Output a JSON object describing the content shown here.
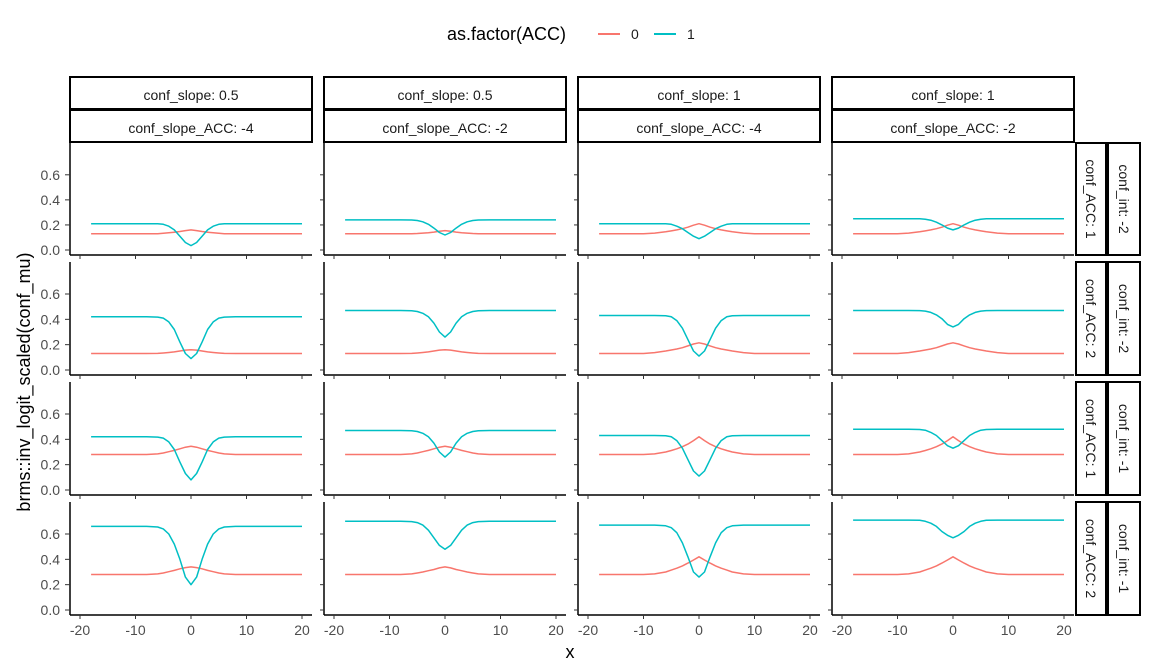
{
  "chart_data": {
    "type": "line",
    "xlabel": "x",
    "ylabel": "brms::inv_logit_scaled(conf_mu)",
    "xlim": [
      -20,
      20
    ],
    "ylim": [
      0,
      0.75
    ],
    "x_ticks": [
      "-20",
      "-10",
      "0",
      "10",
      "20"
    ],
    "y_ticks": [
      "0.0",
      "0.2",
      "0.4",
      "0.6"
    ],
    "legend": {
      "title": "as.factor(ACC)",
      "position": "top",
      "entries": [
        {
          "label": "0",
          "color": "#F8766D"
        },
        {
          "label": "1",
          "color": "#00BFC4"
        }
      ]
    },
    "columns": [
      {
        "strip1": "conf_slope: 0.5",
        "strip2": "conf_slope_ACC: -4"
      },
      {
        "strip1": "conf_slope: 0.5",
        "strip2": "conf_slope_ACC: -2"
      },
      {
        "strip1": "conf_slope: 1",
        "strip2": "conf_slope_ACC: -4"
      },
      {
        "strip1": "conf_slope: 1",
        "strip2": "conf_slope_ACC: -2"
      }
    ],
    "rows": [
      {
        "strip1": "conf_ACC: 1",
        "strip2": "conf_int: -2"
      },
      {
        "strip1": "conf_ACC: 2",
        "strip2": "conf_int: -2"
      },
      {
        "strip1": "conf_ACC: 1",
        "strip2": "conf_int: -1"
      },
      {
        "strip1": "conf_ACC: 2",
        "strip2": "conf_int: -1"
      }
    ],
    "series_x": [
      -18,
      -16,
      -14,
      -12,
      -10,
      -8,
      -6,
      -5,
      -4,
      -3,
      -2,
      -1,
      0,
      1,
      2,
      3,
      4,
      5,
      6,
      8,
      10,
      12,
      14,
      16,
      18,
      20
    ],
    "panels": [
      [
        {
          "acc0": [
            0.13,
            0.13,
            0.13,
            0.13,
            0.13,
            0.13,
            0.13,
            0.133,
            0.137,
            0.142,
            0.148,
            0.155,
            0.16,
            0.155,
            0.148,
            0.142,
            0.137,
            0.133,
            0.13,
            0.13,
            0.13,
            0.13,
            0.13,
            0.13,
            0.13,
            0.13
          ],
          "acc1": [
            0.21,
            0.21,
            0.21,
            0.21,
            0.21,
            0.21,
            0.209,
            0.205,
            0.19,
            0.16,
            0.11,
            0.06,
            0.035,
            0.06,
            0.11,
            0.16,
            0.19,
            0.205,
            0.209,
            0.21,
            0.21,
            0.21,
            0.21,
            0.21,
            0.21,
            0.21
          ]
        },
        {
          "acc0": [
            0.13,
            0.13,
            0.13,
            0.13,
            0.13,
            0.13,
            0.13,
            0.132,
            0.135,
            0.138,
            0.143,
            0.15,
            0.155,
            0.15,
            0.143,
            0.138,
            0.135,
            0.132,
            0.13,
            0.13,
            0.13,
            0.13,
            0.13,
            0.13,
            0.13,
            0.13
          ],
          "acc1": [
            0.24,
            0.24,
            0.24,
            0.24,
            0.24,
            0.24,
            0.239,
            0.235,
            0.225,
            0.205,
            0.175,
            0.14,
            0.12,
            0.14,
            0.175,
            0.205,
            0.225,
            0.235,
            0.239,
            0.24,
            0.24,
            0.24,
            0.24,
            0.24,
            0.24,
            0.24
          ]
        },
        {
          "acc0": [
            0.13,
            0.13,
            0.13,
            0.13,
            0.13,
            0.135,
            0.145,
            0.152,
            0.16,
            0.17,
            0.182,
            0.198,
            0.21,
            0.198,
            0.182,
            0.17,
            0.16,
            0.152,
            0.145,
            0.135,
            0.13,
            0.13,
            0.13,
            0.13,
            0.13,
            0.13
          ],
          "acc1": [
            0.21,
            0.21,
            0.21,
            0.21,
            0.21,
            0.21,
            0.209,
            0.205,
            0.19,
            0.17,
            0.14,
            0.11,
            0.09,
            0.11,
            0.14,
            0.17,
            0.19,
            0.205,
            0.209,
            0.21,
            0.21,
            0.21,
            0.21,
            0.21,
            0.21,
            0.21
          ]
        },
        {
          "acc0": [
            0.13,
            0.13,
            0.13,
            0.13,
            0.13,
            0.135,
            0.145,
            0.152,
            0.16,
            0.17,
            0.182,
            0.198,
            0.21,
            0.198,
            0.182,
            0.17,
            0.16,
            0.152,
            0.145,
            0.135,
            0.13,
            0.13,
            0.13,
            0.13,
            0.13,
            0.13
          ],
          "acc1": [
            0.25,
            0.25,
            0.25,
            0.25,
            0.25,
            0.25,
            0.249,
            0.246,
            0.238,
            0.222,
            0.2,
            0.175,
            0.16,
            0.175,
            0.2,
            0.222,
            0.238,
            0.246,
            0.249,
            0.25,
            0.25,
            0.25,
            0.25,
            0.25,
            0.25,
            0.25
          ]
        }
      ],
      [
        {
          "acc0": [
            0.13,
            0.13,
            0.13,
            0.13,
            0.13,
            0.13,
            0.131,
            0.134,
            0.138,
            0.143,
            0.15,
            0.157,
            0.16,
            0.157,
            0.15,
            0.143,
            0.138,
            0.134,
            0.131,
            0.13,
            0.13,
            0.13,
            0.13,
            0.13,
            0.13,
            0.13
          ],
          "acc1": [
            0.42,
            0.42,
            0.42,
            0.42,
            0.42,
            0.42,
            0.418,
            0.41,
            0.38,
            0.32,
            0.22,
            0.13,
            0.09,
            0.13,
            0.22,
            0.32,
            0.38,
            0.41,
            0.418,
            0.42,
            0.42,
            0.42,
            0.42,
            0.42,
            0.42,
            0.42
          ]
        },
        {
          "acc0": [
            0.13,
            0.13,
            0.13,
            0.13,
            0.13,
            0.13,
            0.131,
            0.134,
            0.138,
            0.143,
            0.15,
            0.157,
            0.16,
            0.157,
            0.15,
            0.143,
            0.138,
            0.134,
            0.131,
            0.13,
            0.13,
            0.13,
            0.13,
            0.13,
            0.13,
            0.13
          ],
          "acc1": [
            0.47,
            0.47,
            0.47,
            0.47,
            0.47,
            0.47,
            0.468,
            0.462,
            0.448,
            0.42,
            0.37,
            0.3,
            0.26,
            0.3,
            0.37,
            0.42,
            0.448,
            0.462,
            0.468,
            0.47,
            0.47,
            0.47,
            0.47,
            0.47,
            0.47,
            0.47
          ]
        },
        {
          "acc0": [
            0.13,
            0.13,
            0.13,
            0.13,
            0.13,
            0.137,
            0.15,
            0.158,
            0.166,
            0.176,
            0.19,
            0.205,
            0.215,
            0.205,
            0.19,
            0.176,
            0.166,
            0.158,
            0.15,
            0.137,
            0.13,
            0.13,
            0.13,
            0.13,
            0.13,
            0.13
          ],
          "acc1": [
            0.43,
            0.43,
            0.43,
            0.43,
            0.43,
            0.43,
            0.428,
            0.42,
            0.39,
            0.33,
            0.24,
            0.15,
            0.11,
            0.15,
            0.24,
            0.33,
            0.39,
            0.42,
            0.428,
            0.43,
            0.43,
            0.43,
            0.43,
            0.43,
            0.43,
            0.43
          ]
        },
        {
          "acc0": [
            0.13,
            0.13,
            0.13,
            0.13,
            0.13,
            0.137,
            0.15,
            0.158,
            0.166,
            0.176,
            0.19,
            0.205,
            0.215,
            0.205,
            0.19,
            0.176,
            0.166,
            0.158,
            0.15,
            0.137,
            0.13,
            0.13,
            0.13,
            0.13,
            0.13,
            0.13
          ],
          "acc1": [
            0.47,
            0.47,
            0.47,
            0.47,
            0.47,
            0.47,
            0.469,
            0.465,
            0.455,
            0.435,
            0.405,
            0.36,
            0.34,
            0.36,
            0.405,
            0.435,
            0.455,
            0.465,
            0.469,
            0.47,
            0.47,
            0.47,
            0.47,
            0.47,
            0.47,
            0.47
          ]
        }
      ],
      [
        {
          "acc0": [
            0.28,
            0.28,
            0.28,
            0.28,
            0.28,
            0.28,
            0.285,
            0.292,
            0.302,
            0.313,
            0.325,
            0.338,
            0.345,
            0.338,
            0.325,
            0.313,
            0.302,
            0.292,
            0.285,
            0.28,
            0.28,
            0.28,
            0.28,
            0.28,
            0.28,
            0.28
          ],
          "acc1": [
            0.42,
            0.42,
            0.42,
            0.42,
            0.42,
            0.42,
            0.418,
            0.41,
            0.38,
            0.32,
            0.22,
            0.13,
            0.08,
            0.13,
            0.22,
            0.32,
            0.38,
            0.41,
            0.418,
            0.42,
            0.42,
            0.42,
            0.42,
            0.42,
            0.42,
            0.42
          ]
        },
        {
          "acc0": [
            0.28,
            0.28,
            0.28,
            0.28,
            0.28,
            0.28,
            0.285,
            0.292,
            0.302,
            0.313,
            0.325,
            0.338,
            0.345,
            0.338,
            0.325,
            0.313,
            0.302,
            0.292,
            0.285,
            0.28,
            0.28,
            0.28,
            0.28,
            0.28,
            0.28,
            0.28
          ],
          "acc1": [
            0.47,
            0.47,
            0.47,
            0.47,
            0.47,
            0.47,
            0.468,
            0.462,
            0.448,
            0.42,
            0.37,
            0.3,
            0.26,
            0.3,
            0.37,
            0.42,
            0.448,
            0.462,
            0.468,
            0.47,
            0.47,
            0.47,
            0.47,
            0.47,
            0.47,
            0.47
          ]
        },
        {
          "acc0": [
            0.28,
            0.28,
            0.28,
            0.28,
            0.28,
            0.285,
            0.3,
            0.312,
            0.325,
            0.342,
            0.362,
            0.39,
            0.42,
            0.39,
            0.362,
            0.342,
            0.325,
            0.312,
            0.3,
            0.285,
            0.28,
            0.28,
            0.28,
            0.28,
            0.28,
            0.28
          ],
          "acc1": [
            0.43,
            0.43,
            0.43,
            0.43,
            0.43,
            0.43,
            0.428,
            0.42,
            0.39,
            0.33,
            0.24,
            0.15,
            0.11,
            0.15,
            0.24,
            0.33,
            0.39,
            0.42,
            0.428,
            0.43,
            0.43,
            0.43,
            0.43,
            0.43,
            0.43,
            0.43
          ]
        },
        {
          "acc0": [
            0.28,
            0.28,
            0.28,
            0.28,
            0.28,
            0.285,
            0.3,
            0.312,
            0.325,
            0.342,
            0.362,
            0.39,
            0.42,
            0.39,
            0.362,
            0.342,
            0.325,
            0.312,
            0.3,
            0.285,
            0.28,
            0.28,
            0.28,
            0.28,
            0.28,
            0.28
          ],
          "acc1": [
            0.48,
            0.48,
            0.48,
            0.48,
            0.48,
            0.48,
            0.478,
            0.472,
            0.455,
            0.43,
            0.39,
            0.35,
            0.33,
            0.35,
            0.39,
            0.43,
            0.455,
            0.472,
            0.478,
            0.48,
            0.48,
            0.48,
            0.48,
            0.48,
            0.48,
            0.48
          ]
        }
      ],
      [
        {
          "acc0": [
            0.28,
            0.28,
            0.28,
            0.28,
            0.28,
            0.28,
            0.285,
            0.292,
            0.302,
            0.313,
            0.325,
            0.335,
            0.34,
            0.335,
            0.325,
            0.313,
            0.302,
            0.292,
            0.285,
            0.28,
            0.28,
            0.28,
            0.28,
            0.28,
            0.28,
            0.28
          ],
          "acc1": [
            0.66,
            0.66,
            0.66,
            0.66,
            0.66,
            0.66,
            0.655,
            0.64,
            0.6,
            0.52,
            0.4,
            0.26,
            0.2,
            0.26,
            0.4,
            0.52,
            0.6,
            0.64,
            0.655,
            0.66,
            0.66,
            0.66,
            0.66,
            0.66,
            0.66,
            0.66
          ]
        },
        {
          "acc0": [
            0.28,
            0.28,
            0.28,
            0.28,
            0.28,
            0.28,
            0.285,
            0.292,
            0.3,
            0.31,
            0.32,
            0.332,
            0.34,
            0.332,
            0.32,
            0.31,
            0.3,
            0.292,
            0.285,
            0.28,
            0.28,
            0.28,
            0.28,
            0.28,
            0.28,
            0.28
          ],
          "acc1": [
            0.7,
            0.7,
            0.7,
            0.7,
            0.7,
            0.7,
            0.698,
            0.69,
            0.67,
            0.63,
            0.57,
            0.51,
            0.48,
            0.51,
            0.57,
            0.63,
            0.67,
            0.69,
            0.698,
            0.7,
            0.7,
            0.7,
            0.7,
            0.7,
            0.7,
            0.7
          ]
        },
        {
          "acc0": [
            0.28,
            0.28,
            0.28,
            0.28,
            0.28,
            0.285,
            0.3,
            0.315,
            0.33,
            0.348,
            0.37,
            0.395,
            0.42,
            0.395,
            0.37,
            0.348,
            0.33,
            0.315,
            0.3,
            0.285,
            0.28,
            0.28,
            0.28,
            0.28,
            0.28,
            0.28
          ],
          "acc1": [
            0.67,
            0.67,
            0.67,
            0.67,
            0.67,
            0.67,
            0.665,
            0.65,
            0.61,
            0.53,
            0.42,
            0.3,
            0.26,
            0.3,
            0.42,
            0.53,
            0.61,
            0.65,
            0.665,
            0.67,
            0.67,
            0.67,
            0.67,
            0.67,
            0.67,
            0.67
          ]
        },
        {
          "acc0": [
            0.28,
            0.28,
            0.28,
            0.28,
            0.28,
            0.285,
            0.3,
            0.315,
            0.33,
            0.348,
            0.37,
            0.395,
            0.42,
            0.395,
            0.37,
            0.348,
            0.33,
            0.315,
            0.3,
            0.285,
            0.28,
            0.28,
            0.28,
            0.28,
            0.28,
            0.28
          ],
          "acc1": [
            0.71,
            0.71,
            0.71,
            0.71,
            0.71,
            0.71,
            0.708,
            0.7,
            0.685,
            0.66,
            0.62,
            0.59,
            0.57,
            0.59,
            0.62,
            0.66,
            0.685,
            0.7,
            0.708,
            0.71,
            0.71,
            0.71,
            0.71,
            0.71,
            0.71,
            0.71
          ]
        }
      ]
    ]
  }
}
